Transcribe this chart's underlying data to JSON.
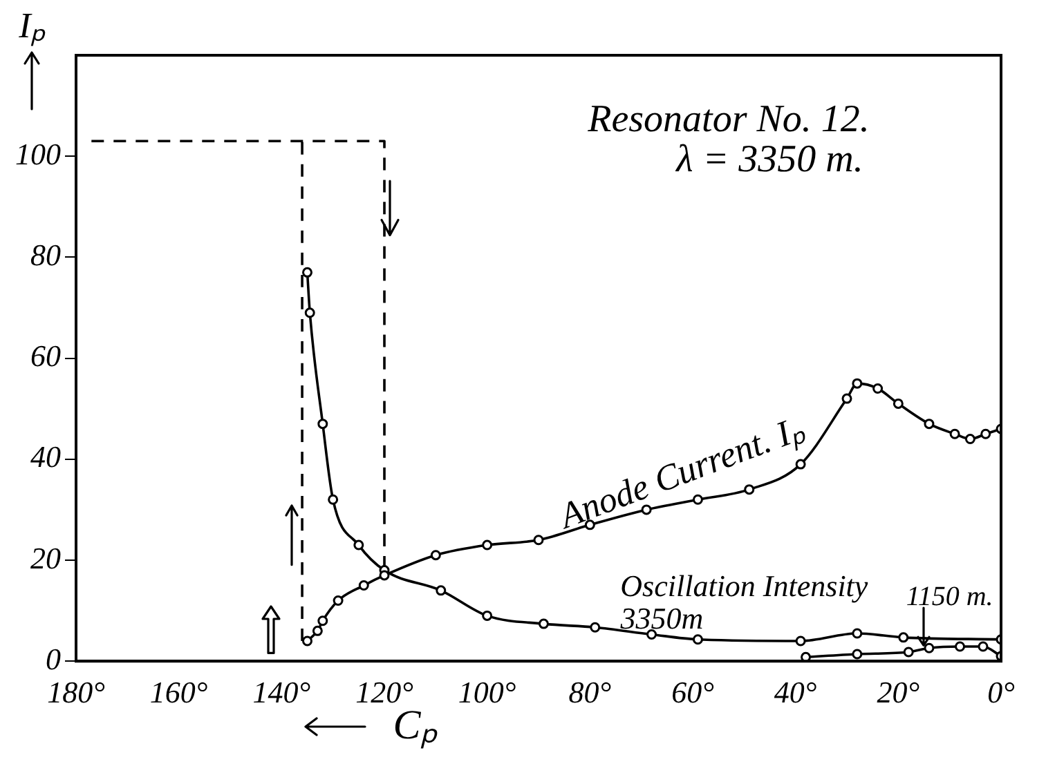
{
  "chart_data": {
    "type": "line",
    "title": "Resonator No. 12.",
    "subtitle": "λ = 3350 m.",
    "xlabel": "Cₚ",
    "ylabel": "Iₚ",
    "annotations": [
      "Oscillation Intensity"
    ],
    "xlim": [
      180,
      0
    ],
    "ylim": [
      0,
      120
    ],
    "xticks": [
      {
        "value": 180,
        "label": "180°"
      },
      {
        "value": 160,
        "label": "160°"
      },
      {
        "value": 140,
        "label": "140°"
      },
      {
        "value": 120,
        "label": "120°"
      },
      {
        "value": 100,
        "label": "100°"
      },
      {
        "value": 80,
        "label": "80°"
      },
      {
        "value": 60,
        "label": "60°"
      },
      {
        "value": 40,
        "label": "40°"
      },
      {
        "value": 20,
        "label": "20°"
      },
      {
        "value": 0,
        "label": "0°"
      }
    ],
    "yticks": [
      0,
      20,
      40,
      60,
      80,
      100
    ],
    "grid": false,
    "legend": false,
    "marker": "circle",
    "line_style": "solid",
    "series": [
      {
        "name": "Anode Current. Iₚ",
        "color": "#000000",
        "x": [
          135,
          133,
          132,
          129,
          124,
          120,
          110,
          100,
          90,
          80,
          69,
          59,
          49,
          39,
          30,
          28,
          24,
          20,
          14,
          9,
          6,
          3,
          0
        ],
        "values": [
          4,
          6,
          8,
          12,
          15,
          17,
          21,
          23,
          24,
          27,
          30,
          32,
          34,
          39,
          52,
          55,
          54,
          51,
          47,
          45,
          44,
          45,
          46
        ]
      },
      {
        "name": "3350m",
        "color": "#000000",
        "x": [
          135,
          134.5,
          132,
          130,
          125,
          120,
          109,
          100,
          89,
          79,
          68,
          59,
          39,
          28,
          19,
          0
        ],
        "values": [
          77,
          69,
          47,
          32,
          23,
          18,
          14,
          9,
          7.4,
          6.7,
          5.3,
          4.3,
          4,
          5.5,
          4.7,
          4.3
        ]
      },
      {
        "name": "1150 m.",
        "color": "#000000",
        "x": [
          38,
          28,
          18,
          14,
          8,
          3.5,
          0
        ],
        "values": [
          0.8,
          1.4,
          1.8,
          2.6,
          2.9,
          2.9,
          1
        ]
      },
      {
        "color": "#000000",
        "x": [
          177,
          120,
          120
        ],
        "values": [
          103,
          103,
          18
        ],
        "line_style": "dashed",
        "marker": "none"
      },
      {
        "color": "#000000",
        "x": [
          136,
          136
        ],
        "values": [
          4,
          103
        ],
        "line_style": "dashed",
        "marker": "none"
      }
    ]
  }
}
